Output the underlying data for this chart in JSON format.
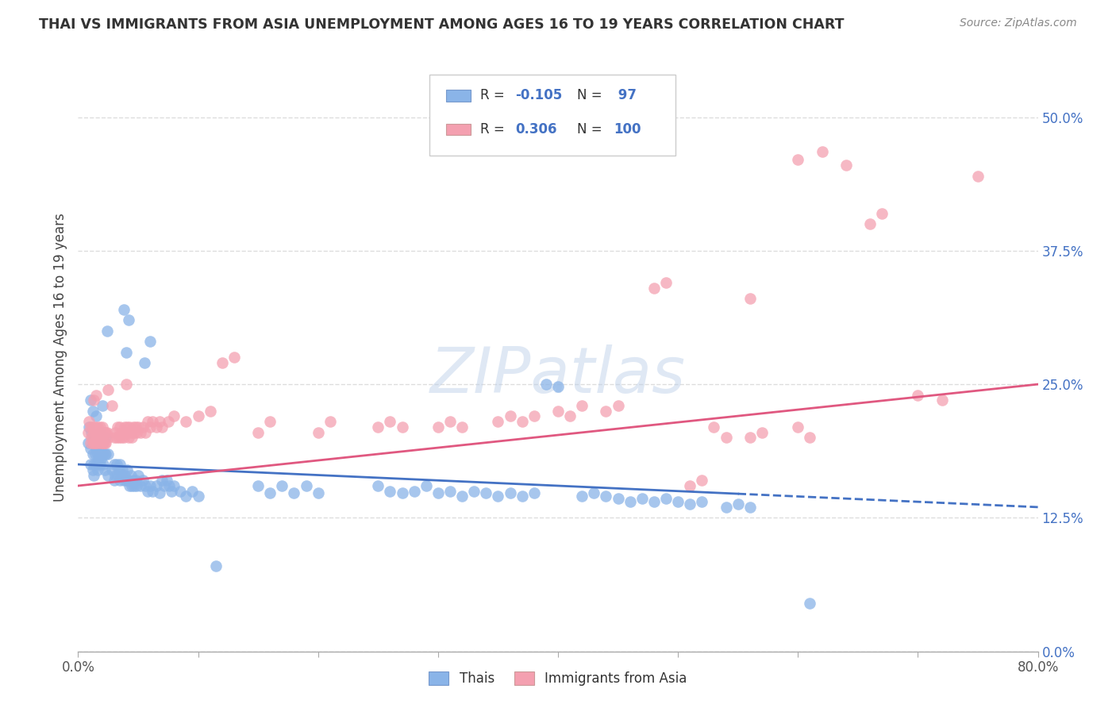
{
  "title": "THAI VS IMMIGRANTS FROM ASIA UNEMPLOYMENT AMONG AGES 16 TO 19 YEARS CORRELATION CHART",
  "source": "Source: ZipAtlas.com",
  "ylabel": "Unemployment Among Ages 16 to 19 years",
  "xlim": [
    0.0,
    0.8
  ],
  "ylim": [
    0.0,
    0.55
  ],
  "yticks": [
    0.0,
    0.125,
    0.25,
    0.375,
    0.5
  ],
  "ytick_labels": [
    "0.0%",
    "12.5%",
    "25.0%",
    "37.5%",
    "50.0%"
  ],
  "xticks": [
    0.0,
    0.1,
    0.2,
    0.3,
    0.4,
    0.5,
    0.6,
    0.7,
    0.8
  ],
  "xtick_labels": [
    "0.0%",
    "",
    "",
    "",
    "",
    "",
    "",
    "",
    "80.0%"
  ],
  "thai_color": "#8ab4e8",
  "immigrant_color": "#f4a0b0",
  "background_color": "#ffffff",
  "grid_color": "#dddddd",
  "thai_line_color": "#4472c4",
  "immigrant_line_color": "#e05880",
  "watermark": "ZIPatlas",
  "thai_line": {
    "x0": 0.0,
    "y0": 0.175,
    "x1": 0.8,
    "y1": 0.135,
    "dash_start": 0.55
  },
  "immigrant_line": {
    "x0": 0.0,
    "y0": 0.155,
    "x1": 0.8,
    "y1": 0.25
  },
  "thai_scatter": [
    [
      0.008,
      0.195
    ],
    [
      0.009,
      0.21
    ],
    [
      0.01,
      0.19
    ],
    [
      0.01,
      0.175
    ],
    [
      0.011,
      0.205
    ],
    [
      0.012,
      0.185
    ],
    [
      0.012,
      0.17
    ],
    [
      0.013,
      0.195
    ],
    [
      0.013,
      0.175
    ],
    [
      0.013,
      0.165
    ],
    [
      0.014,
      0.2
    ],
    [
      0.014,
      0.185
    ],
    [
      0.015,
      0.19
    ],
    [
      0.015,
      0.175
    ],
    [
      0.015,
      0.22
    ],
    [
      0.016,
      0.2
    ],
    [
      0.016,
      0.185
    ],
    [
      0.016,
      0.17
    ],
    [
      0.017,
      0.195
    ],
    [
      0.017,
      0.18
    ],
    [
      0.018,
      0.205
    ],
    [
      0.018,
      0.19
    ],
    [
      0.018,
      0.175
    ],
    [
      0.019,
      0.195
    ],
    [
      0.019,
      0.18
    ],
    [
      0.02,
      0.2
    ],
    [
      0.02,
      0.185
    ],
    [
      0.02,
      0.23
    ],
    [
      0.021,
      0.195
    ],
    [
      0.021,
      0.175
    ],
    [
      0.022,
      0.185
    ],
    [
      0.022,
      0.17
    ],
    [
      0.023,
      0.2
    ],
    [
      0.023,
      0.185
    ],
    [
      0.024,
      0.3
    ],
    [
      0.025,
      0.185
    ],
    [
      0.025,
      0.165
    ],
    [
      0.01,
      0.235
    ],
    [
      0.012,
      0.225
    ],
    [
      0.028,
      0.17
    ],
    [
      0.03,
      0.175
    ],
    [
      0.03,
      0.16
    ],
    [
      0.031,
      0.165
    ],
    [
      0.032,
      0.175
    ],
    [
      0.033,
      0.165
    ],
    [
      0.034,
      0.17
    ],
    [
      0.035,
      0.16
    ],
    [
      0.035,
      0.175
    ],
    [
      0.036,
      0.165
    ],
    [
      0.037,
      0.17
    ],
    [
      0.038,
      0.16
    ],
    [
      0.039,
      0.165
    ],
    [
      0.04,
      0.16
    ],
    [
      0.041,
      0.17
    ],
    [
      0.042,
      0.16
    ],
    [
      0.043,
      0.155
    ],
    [
      0.044,
      0.165
    ],
    [
      0.045,
      0.155
    ],
    [
      0.046,
      0.16
    ],
    [
      0.047,
      0.155
    ],
    [
      0.048,
      0.16
    ],
    [
      0.049,
      0.155
    ],
    [
      0.05,
      0.165
    ],
    [
      0.052,
      0.155
    ],
    [
      0.054,
      0.16
    ],
    [
      0.056,
      0.155
    ],
    [
      0.058,
      0.15
    ],
    [
      0.06,
      0.155
    ],
    [
      0.062,
      0.15
    ],
    [
      0.065,
      0.155
    ],
    [
      0.068,
      0.148
    ],
    [
      0.04,
      0.28
    ],
    [
      0.042,
      0.31
    ],
    [
      0.038,
      0.32
    ],
    [
      0.055,
      0.27
    ],
    [
      0.06,
      0.29
    ],
    [
      0.07,
      0.16
    ],
    [
      0.072,
      0.155
    ],
    [
      0.074,
      0.16
    ],
    [
      0.076,
      0.155
    ],
    [
      0.078,
      0.15
    ],
    [
      0.08,
      0.155
    ],
    [
      0.085,
      0.15
    ],
    [
      0.09,
      0.145
    ],
    [
      0.095,
      0.15
    ],
    [
      0.1,
      0.145
    ],
    [
      0.115,
      0.08
    ],
    [
      0.15,
      0.155
    ],
    [
      0.16,
      0.148
    ],
    [
      0.17,
      0.155
    ],
    [
      0.18,
      0.148
    ],
    [
      0.19,
      0.155
    ],
    [
      0.2,
      0.148
    ],
    [
      0.25,
      0.155
    ],
    [
      0.26,
      0.15
    ],
    [
      0.27,
      0.148
    ],
    [
      0.28,
      0.15
    ],
    [
      0.29,
      0.155
    ],
    [
      0.3,
      0.148
    ],
    [
      0.31,
      0.15
    ],
    [
      0.32,
      0.145
    ],
    [
      0.33,
      0.15
    ],
    [
      0.34,
      0.148
    ],
    [
      0.35,
      0.145
    ],
    [
      0.36,
      0.148
    ],
    [
      0.37,
      0.145
    ],
    [
      0.38,
      0.148
    ],
    [
      0.39,
      0.25
    ],
    [
      0.4,
      0.248
    ],
    [
      0.42,
      0.145
    ],
    [
      0.43,
      0.148
    ],
    [
      0.44,
      0.145
    ],
    [
      0.45,
      0.143
    ],
    [
      0.46,
      0.14
    ],
    [
      0.47,
      0.143
    ],
    [
      0.48,
      0.14
    ],
    [
      0.49,
      0.143
    ],
    [
      0.5,
      0.14
    ],
    [
      0.51,
      0.138
    ],
    [
      0.52,
      0.14
    ],
    [
      0.54,
      0.135
    ],
    [
      0.55,
      0.138
    ],
    [
      0.56,
      0.135
    ],
    [
      0.61,
      0.045
    ]
  ],
  "immigrant_scatter": [
    [
      0.008,
      0.205
    ],
    [
      0.009,
      0.215
    ],
    [
      0.01,
      0.195
    ],
    [
      0.01,
      0.21
    ],
    [
      0.011,
      0.2
    ],
    [
      0.012,
      0.21
    ],
    [
      0.012,
      0.195
    ],
    [
      0.013,
      0.205
    ],
    [
      0.013,
      0.195
    ],
    [
      0.014,
      0.21
    ],
    [
      0.014,
      0.195
    ],
    [
      0.015,
      0.205
    ],
    [
      0.015,
      0.195
    ],
    [
      0.016,
      0.21
    ],
    [
      0.016,
      0.2
    ],
    [
      0.017,
      0.205
    ],
    [
      0.017,
      0.195
    ],
    [
      0.018,
      0.21
    ],
    [
      0.018,
      0.2
    ],
    [
      0.019,
      0.205
    ],
    [
      0.019,
      0.195
    ],
    [
      0.02,
      0.21
    ],
    [
      0.02,
      0.195
    ],
    [
      0.021,
      0.205
    ],
    [
      0.021,
      0.195
    ],
    [
      0.022,
      0.205
    ],
    [
      0.022,
      0.195
    ],
    [
      0.023,
      0.205
    ],
    [
      0.023,
      0.195
    ],
    [
      0.024,
      0.205
    ],
    [
      0.025,
      0.2
    ],
    [
      0.013,
      0.235
    ],
    [
      0.015,
      0.24
    ],
    [
      0.028,
      0.23
    ],
    [
      0.03,
      0.2
    ],
    [
      0.031,
      0.205
    ],
    [
      0.032,
      0.2
    ],
    [
      0.033,
      0.21
    ],
    [
      0.034,
      0.2
    ],
    [
      0.035,
      0.21
    ],
    [
      0.036,
      0.2
    ],
    [
      0.037,
      0.205
    ],
    [
      0.038,
      0.2
    ],
    [
      0.039,
      0.21
    ],
    [
      0.04,
      0.205
    ],
    [
      0.041,
      0.21
    ],
    [
      0.042,
      0.2
    ],
    [
      0.043,
      0.21
    ],
    [
      0.044,
      0.205
    ],
    [
      0.045,
      0.2
    ],
    [
      0.046,
      0.21
    ],
    [
      0.047,
      0.205
    ],
    [
      0.048,
      0.21
    ],
    [
      0.049,
      0.205
    ],
    [
      0.05,
      0.21
    ],
    [
      0.052,
      0.205
    ],
    [
      0.054,
      0.21
    ],
    [
      0.056,
      0.205
    ],
    [
      0.058,
      0.215
    ],
    [
      0.06,
      0.21
    ],
    [
      0.062,
      0.215
    ],
    [
      0.065,
      0.21
    ],
    [
      0.068,
      0.215
    ],
    [
      0.07,
      0.21
    ],
    [
      0.075,
      0.215
    ],
    [
      0.08,
      0.22
    ],
    [
      0.025,
      0.245
    ],
    [
      0.04,
      0.25
    ],
    [
      0.09,
      0.215
    ],
    [
      0.1,
      0.22
    ],
    [
      0.11,
      0.225
    ],
    [
      0.12,
      0.27
    ],
    [
      0.13,
      0.275
    ],
    [
      0.15,
      0.205
    ],
    [
      0.16,
      0.215
    ],
    [
      0.2,
      0.205
    ],
    [
      0.21,
      0.215
    ],
    [
      0.25,
      0.21
    ],
    [
      0.26,
      0.215
    ],
    [
      0.27,
      0.21
    ],
    [
      0.3,
      0.21
    ],
    [
      0.31,
      0.215
    ],
    [
      0.32,
      0.21
    ],
    [
      0.35,
      0.215
    ],
    [
      0.36,
      0.22
    ],
    [
      0.37,
      0.215
    ],
    [
      0.38,
      0.22
    ],
    [
      0.4,
      0.225
    ],
    [
      0.41,
      0.22
    ],
    [
      0.42,
      0.23
    ],
    [
      0.44,
      0.225
    ],
    [
      0.45,
      0.23
    ],
    [
      0.48,
      0.34
    ],
    [
      0.49,
      0.345
    ],
    [
      0.51,
      0.155
    ],
    [
      0.52,
      0.16
    ],
    [
      0.53,
      0.21
    ],
    [
      0.54,
      0.2
    ],
    [
      0.56,
      0.2
    ],
    [
      0.57,
      0.205
    ],
    [
      0.6,
      0.46
    ],
    [
      0.62,
      0.468
    ],
    [
      0.64,
      0.455
    ],
    [
      0.66,
      0.4
    ],
    [
      0.67,
      0.41
    ],
    [
      0.7,
      0.24
    ],
    [
      0.72,
      0.235
    ],
    [
      0.75,
      0.445
    ],
    [
      0.56,
      0.33
    ],
    [
      0.6,
      0.21
    ],
    [
      0.61,
      0.2
    ]
  ]
}
